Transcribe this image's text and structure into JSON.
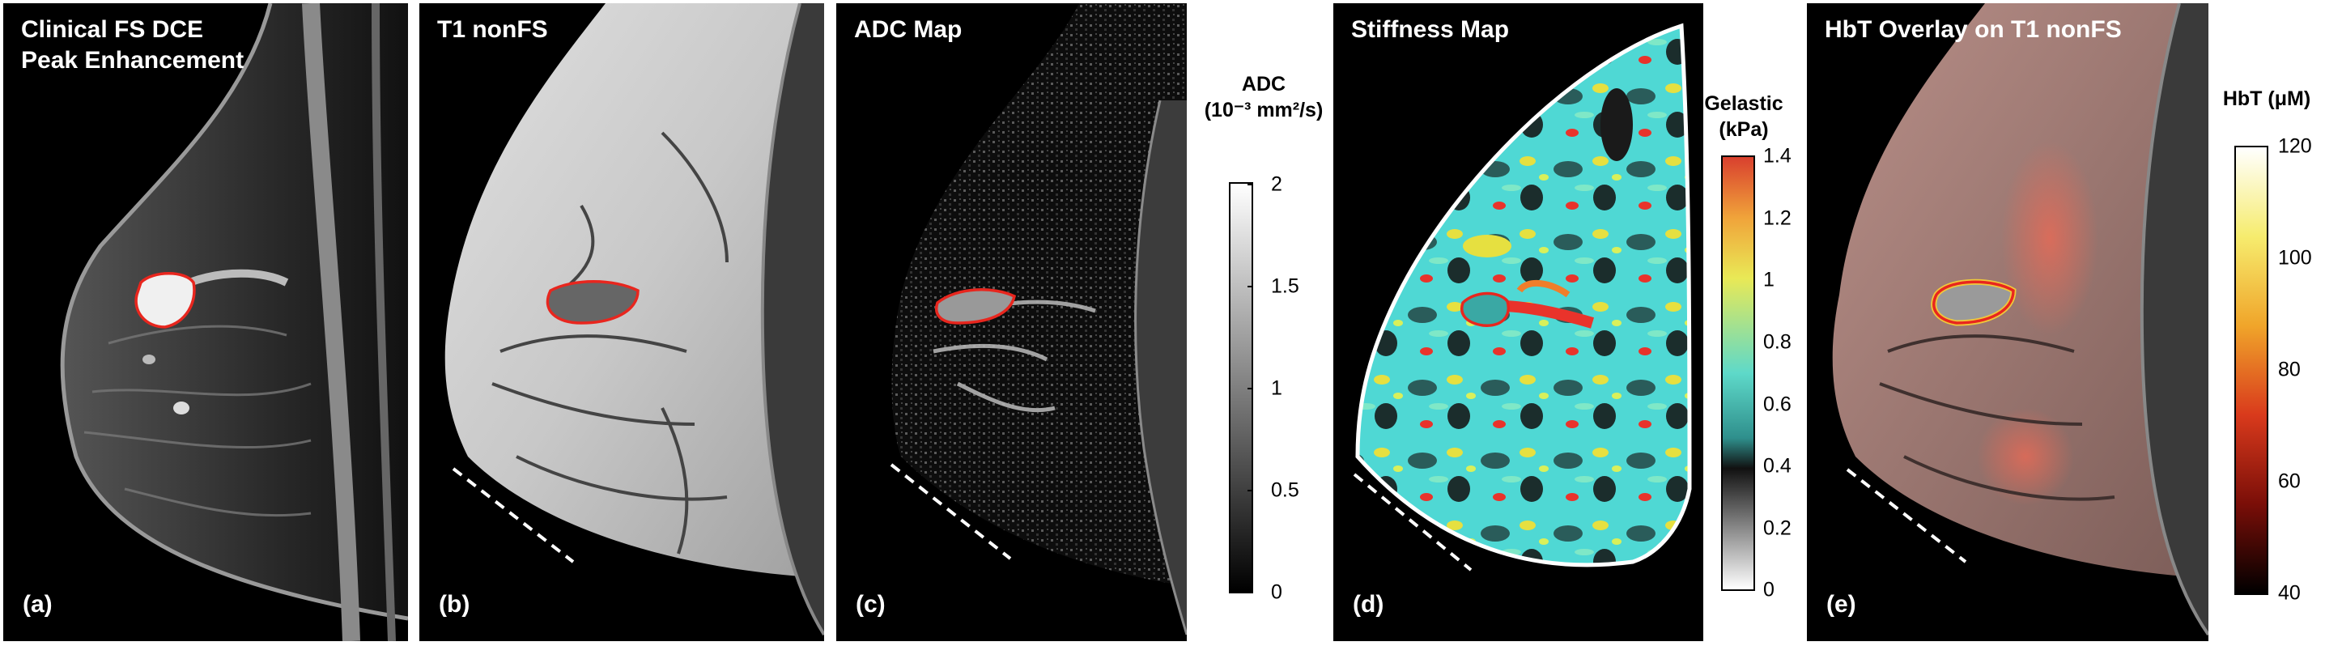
{
  "panels": [
    {
      "title": "Clinical FS DCE\nPeak Enhancement",
      "label": "(a)"
    },
    {
      "title": "T1 nonFS",
      "label": "(b)"
    },
    {
      "title": "ADC Map",
      "label": "(c)"
    },
    {
      "title": "Stiffness Map",
      "label": "(d)"
    },
    {
      "title": "HbT Overlay on T1 nonFS",
      "label": "(e)"
    }
  ],
  "colorbars": {
    "adc": {
      "title_line1": "ADC",
      "title_line2": "(10⁻³ mm²/s)",
      "ticks": [
        "2",
        "1.5",
        "1",
        "0.5",
        "0"
      ],
      "range": [
        0,
        2
      ],
      "colormap": "gray"
    },
    "stiffness": {
      "title_line1": "Gelastic",
      "title_line2": "(kPa)",
      "ticks": [
        "1.4",
        "1.2",
        "1",
        "0.8",
        "0.6",
        "0.4",
        "0.2",
        "0"
      ],
      "range": [
        0,
        1.4
      ],
      "colormap": "white-black-cyan-yellow-red"
    },
    "hbt": {
      "title_line1": "HbT (μM)",
      "ticks": [
        "120",
        "100",
        "80",
        "60",
        "40"
      ],
      "range": [
        40,
        120
      ],
      "colormap": "hot"
    }
  },
  "colors": {
    "roi_outline": "#e8261e",
    "dashed_line": "#ffffff",
    "panel_background": "#000000"
  }
}
